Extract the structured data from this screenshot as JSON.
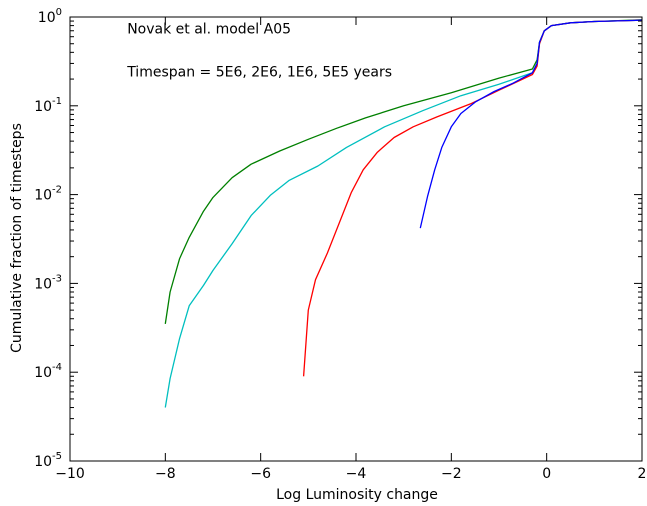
{
  "chart_data": {
    "type": "line",
    "title": "",
    "xlabel": "Log Luminosity change",
    "ylabel": "Cumulative fraction of timesteps",
    "xlim": [
      -10,
      2
    ],
    "ylim": [
      1e-05,
      1
    ],
    "yscale": "log",
    "grid": false,
    "legend": "none",
    "x_ticks": [
      {
        "value": -10,
        "label": "−10"
      },
      {
        "value": -8,
        "label": "−8"
      },
      {
        "value": -6,
        "label": "−6"
      },
      {
        "value": -4,
        "label": "−4"
      },
      {
        "value": -2,
        "label": "−2"
      },
      {
        "value": 0,
        "label": "0"
      },
      {
        "value": 2,
        "label": "2"
      }
    ],
    "y_ticks": [
      {
        "value": 1e-05,
        "base": "10",
        "exp": "-5"
      },
      {
        "value": 0.0001,
        "base": "10",
        "exp": "-4"
      },
      {
        "value": 0.001,
        "base": "10",
        "exp": "-3"
      },
      {
        "value": 0.01,
        "base": "10",
        "exp": "-2"
      },
      {
        "value": 0.1,
        "base": "10",
        "exp": "-1"
      },
      {
        "value": 1,
        "base": "10",
        "exp": "0"
      }
    ],
    "annotations": [
      {
        "text": "Novak et al. model A05",
        "x": -8.8,
        "y": 0.65
      },
      {
        "text": "Timespan = 5E6, 2E6, 1E6, 5E5 years",
        "x": -8.8,
        "y": 0.215
      }
    ],
    "series": [
      {
        "color": "#008000",
        "points": [
          [
            -8.0,
            0.00035
          ],
          [
            -7.9,
            0.0008
          ],
          [
            -7.7,
            0.0019
          ],
          [
            -7.5,
            0.0033
          ],
          [
            -7.2,
            0.0065
          ],
          [
            -7.0,
            0.0093
          ],
          [
            -6.6,
            0.0155
          ],
          [
            -6.2,
            0.022
          ],
          [
            -5.6,
            0.031
          ],
          [
            -5.0,
            0.042
          ],
          [
            -4.4,
            0.056
          ],
          [
            -3.8,
            0.073
          ],
          [
            -3.0,
            0.1
          ],
          [
            -2.0,
            0.14
          ],
          [
            -1.0,
            0.205
          ],
          [
            -0.3,
            0.26
          ],
          [
            -0.2,
            0.33
          ],
          [
            -0.15,
            0.52
          ],
          [
            -0.05,
            0.7
          ],
          [
            0.1,
            0.8
          ],
          [
            0.5,
            0.86
          ],
          [
            1.0,
            0.89
          ],
          [
            1.5,
            0.91
          ],
          [
            2.0,
            0.93
          ]
        ]
      },
      {
        "color": "#00bfbf",
        "points": [
          [
            -8.0,
            4e-05
          ],
          [
            -7.9,
            8.5e-05
          ],
          [
            -7.7,
            0.00024
          ],
          [
            -7.5,
            0.00056
          ],
          [
            -7.2,
            0.00095
          ],
          [
            -7.0,
            0.0014
          ],
          [
            -6.6,
            0.0028
          ],
          [
            -6.2,
            0.0058
          ],
          [
            -5.8,
            0.0098
          ],
          [
            -5.4,
            0.0145
          ],
          [
            -4.8,
            0.021
          ],
          [
            -4.2,
            0.034
          ],
          [
            -3.4,
            0.058
          ],
          [
            -2.6,
            0.088
          ],
          [
            -1.8,
            0.13
          ],
          [
            -1.0,
            0.175
          ],
          [
            -0.3,
            0.235
          ],
          [
            -0.2,
            0.3
          ],
          [
            -0.15,
            0.5
          ],
          [
            -0.05,
            0.7
          ],
          [
            0.1,
            0.8
          ],
          [
            0.5,
            0.86
          ],
          [
            1.0,
            0.89
          ],
          [
            2.0,
            0.92
          ]
        ]
      },
      {
        "color": "#ff0000",
        "points": [
          [
            -5.1,
            9e-05
          ],
          [
            -5.0,
            0.0005
          ],
          [
            -4.85,
            0.0011
          ],
          [
            -4.6,
            0.0022
          ],
          [
            -4.35,
            0.0048
          ],
          [
            -4.1,
            0.0105
          ],
          [
            -3.85,
            0.019
          ],
          [
            -3.55,
            0.03
          ],
          [
            -3.2,
            0.044
          ],
          [
            -2.8,
            0.058
          ],
          [
            -2.3,
            0.075
          ],
          [
            -1.6,
            0.105
          ],
          [
            -1.0,
            0.15
          ],
          [
            -0.3,
            0.225
          ],
          [
            -0.2,
            0.28
          ],
          [
            -0.15,
            0.5
          ],
          [
            -0.05,
            0.7
          ],
          [
            0.1,
            0.8
          ],
          [
            0.5,
            0.86
          ],
          [
            1.0,
            0.89
          ],
          [
            2.0,
            0.92
          ]
        ]
      },
      {
        "color": "#0000ff",
        "points": [
          [
            -2.65,
            0.0042
          ],
          [
            -2.5,
            0.0095
          ],
          [
            -2.35,
            0.019
          ],
          [
            -2.2,
            0.034
          ],
          [
            -2.0,
            0.058
          ],
          [
            -1.8,
            0.082
          ],
          [
            -1.5,
            0.11
          ],
          [
            -1.1,
            0.145
          ],
          [
            -0.7,
            0.18
          ],
          [
            -0.3,
            0.235
          ],
          [
            -0.2,
            0.3
          ],
          [
            -0.15,
            0.52
          ],
          [
            -0.05,
            0.7
          ],
          [
            0.1,
            0.8
          ],
          [
            0.5,
            0.86
          ],
          [
            1.0,
            0.89
          ],
          [
            2.0,
            0.92
          ]
        ]
      }
    ]
  }
}
